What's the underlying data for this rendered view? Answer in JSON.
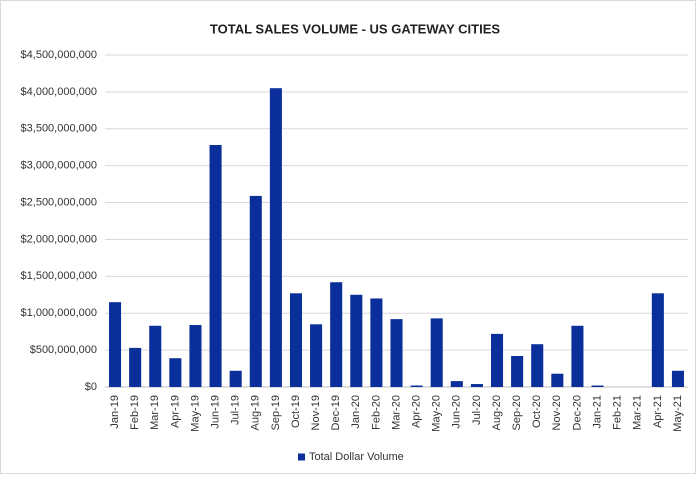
{
  "chart_data": {
    "type": "bar",
    "title": "TOTAL SALES VOLUME  - US GATEWAY CITIES",
    "categories": [
      "Jan-19",
      "Feb-19",
      "Mar-19",
      "Apr-19",
      "May-19",
      "Jun-19",
      "Jul-19",
      "Aug-19",
      "Sep-19",
      "Oct-19",
      "Nov-19",
      "Dec-19",
      "Jan-20",
      "Feb-20",
      "Mar-20",
      "Apr-20",
      "May-20",
      "Jun-20",
      "Jul-20",
      "Aug-20",
      "Sep-20",
      "Oct-20",
      "Nov-20",
      "Dec-20",
      "Jan-21",
      "Feb-21",
      "Mar-21",
      "Apr-21",
      "May-21"
    ],
    "series": [
      {
        "name": "Total Dollar Volume",
        "color": "#0a2f9a",
        "values": [
          1150000000,
          530000000,
          830000000,
          390000000,
          840000000,
          3280000000,
          220000000,
          2590000000,
          4050000000,
          1270000000,
          850000000,
          1420000000,
          1250000000,
          1200000000,
          920000000,
          20000000,
          930000000,
          80000000,
          40000000,
          720000000,
          420000000,
          580000000,
          180000000,
          830000000,
          20000000,
          0,
          0,
          1270000000,
          220000000
        ]
      }
    ],
    "ylim": [
      0,
      4500000000
    ],
    "yticks": [
      {
        "value": 0,
        "label": "$0"
      },
      {
        "value": 500000000,
        "label": "$500,000,000"
      },
      {
        "value": 1000000000,
        "label": "$1,000,000,000"
      },
      {
        "value": 1500000000,
        "label": "$1,500,000,000"
      },
      {
        "value": 2000000000,
        "label": "$2,000,000,000"
      },
      {
        "value": 2500000000,
        "label": "$2,500,000,000"
      },
      {
        "value": 3000000000,
        "label": "$3,000,000,000"
      },
      {
        "value": 3500000000,
        "label": "$3,500,000,000"
      },
      {
        "value": 4000000000,
        "label": "$4,000,000,000"
      },
      {
        "value": 4500000000,
        "label": "$4,500,000,000"
      }
    ],
    "grid": true,
    "legend": "bottom"
  }
}
